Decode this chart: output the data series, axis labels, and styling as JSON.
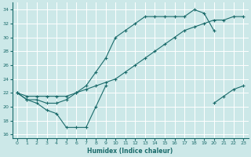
{
  "xlabel": "Humidex (Indice chaleur)",
  "bg_color": "#cce8e8",
  "line_color": "#1a6b6b",
  "grid_color": "#ffffff",
  "xlim": [
    -0.5,
    23.5
  ],
  "ylim": [
    15.5,
    35.0
  ],
  "xticks": [
    0,
    1,
    2,
    3,
    4,
    5,
    6,
    7,
    8,
    9,
    10,
    11,
    12,
    13,
    14,
    15,
    16,
    17,
    18,
    19,
    20,
    21,
    22,
    23
  ],
  "yticks": [
    16,
    18,
    20,
    22,
    24,
    26,
    28,
    30,
    32,
    34
  ],
  "line_steady_x": [
    0,
    1,
    2,
    3,
    4,
    5,
    6,
    7,
    8,
    9,
    10,
    11,
    12,
    13,
    14,
    15,
    16,
    17,
    18,
    19,
    20,
    21,
    22,
    23
  ],
  "line_steady_y": [
    22,
    21.5,
    21.5,
    21.5,
    21.5,
    21.5,
    22,
    22.5,
    23,
    23.5,
    24,
    25,
    26,
    27,
    28,
    29,
    30,
    31,
    31.5,
    32,
    32.5,
    32.5,
    33,
    33
  ],
  "line_peak_x": [
    0,
    1,
    2,
    3,
    4,
    5,
    6,
    7,
    8,
    9,
    10,
    11,
    12,
    13,
    14,
    15,
    16,
    17,
    18,
    19,
    20,
    21,
    22,
    23
  ],
  "line_peak_y": [
    22,
    21,
    21,
    20.5,
    20.5,
    21,
    22,
    23,
    25,
    27,
    30,
    31,
    32,
    33,
    33,
    33,
    33,
    33,
    34,
    33.5,
    31,
    null,
    null,
    null
  ],
  "line_dip_x_seg1": [
    0,
    1,
    2,
    3,
    4,
    5,
    6,
    7,
    8,
    9
  ],
  "line_dip_y_seg1": [
    22,
    21,
    20.5,
    19.5,
    19,
    17,
    17,
    17,
    20,
    23
  ],
  "line_dip_x_seg2": [
    19,
    20,
    21,
    22,
    23
  ],
  "line_dip_y_seg2": [
    null,
    20.5,
    21.5,
    22.5,
    23
  ]
}
